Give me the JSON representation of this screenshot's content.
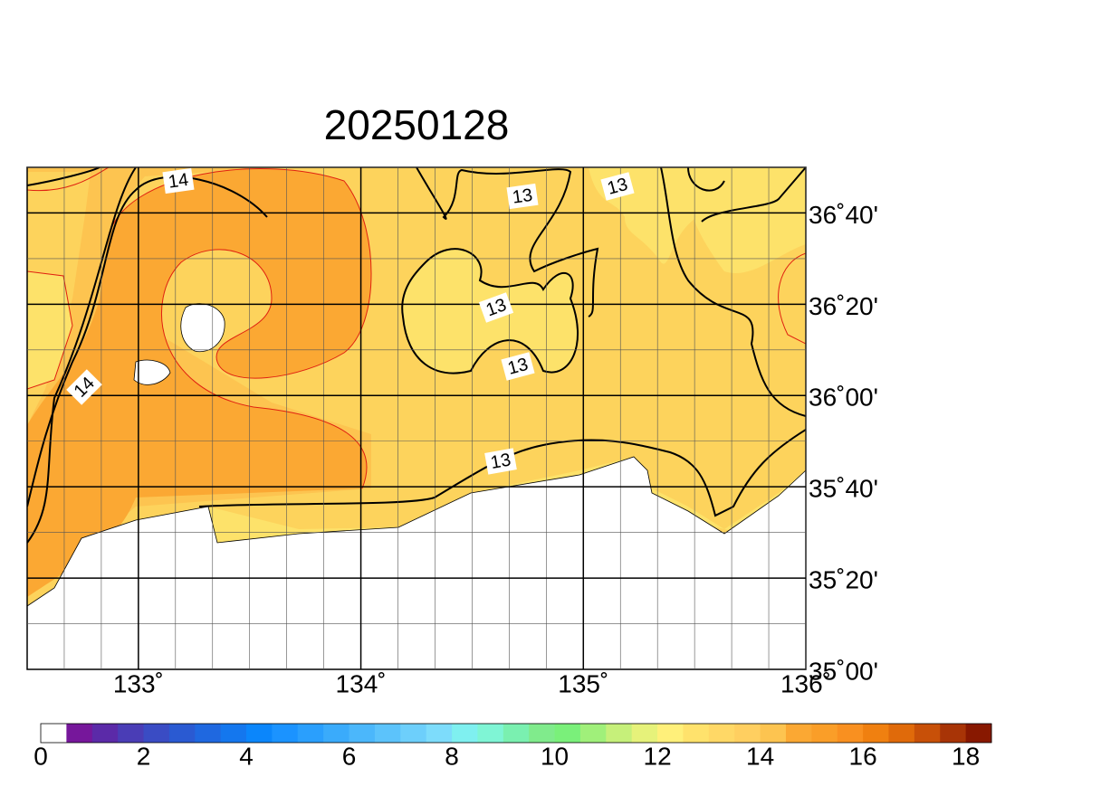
{
  "title": "20250128",
  "map": {
    "xlim": [
      132.5,
      136
    ],
    "ylim": [
      35,
      36.8333
    ],
    "xticks": [
      {
        "value": 133,
        "label": "133˚"
      },
      {
        "value": 134,
        "label": "134˚"
      },
      {
        "value": 135,
        "label": "135˚"
      },
      {
        "value": 136,
        "label": "136˚"
      }
    ],
    "yticks": [
      {
        "value": 35,
        "label": "35˚00'"
      },
      {
        "value": 35.3333,
        "label": "35˚20'"
      },
      {
        "value": 35.6667,
        "label": "35˚40'"
      },
      {
        "value": 36,
        "label": "36˚00'"
      },
      {
        "value": 36.3333,
        "label": "36˚20'"
      },
      {
        "value": 36.6667,
        "label": "36˚40'"
      }
    ],
    "contour_labels": [
      "14",
      "14",
      "13",
      "13",
      "13",
      "13",
      "13"
    ]
  },
  "colorbar": {
    "lim": [
      0,
      18.5
    ],
    "ticks": [
      0,
      2,
      4,
      6,
      8,
      10,
      12,
      14,
      16,
      18
    ],
    "colors": [
      "#ffffff",
      "#76179b",
      "#5b2aa8",
      "#4a3db6",
      "#3a4cc4",
      "#2a5ad2",
      "#1f68e0",
      "#1477ee",
      "#0b86fb",
      "#1b93ff",
      "#2a9ffd",
      "#3aabfb",
      "#4bb7fb",
      "#5cc3fb",
      "#6dcffb",
      "#7ddcfb",
      "#7ff0f0",
      "#7ff5d5",
      "#7af0b0",
      "#80eb8c",
      "#7af07a",
      "#a0f07a",
      "#c6f07a",
      "#e6f27a",
      "#fff07a",
      "#ffe26c",
      "#ffd866",
      "#ffcf60",
      "#fdc450",
      "#fba833",
      "#fa9e28",
      "#f99020",
      "#f08010",
      "#e06a0a",
      "#c85008",
      "#a83406",
      "#881800"
    ]
  }
}
